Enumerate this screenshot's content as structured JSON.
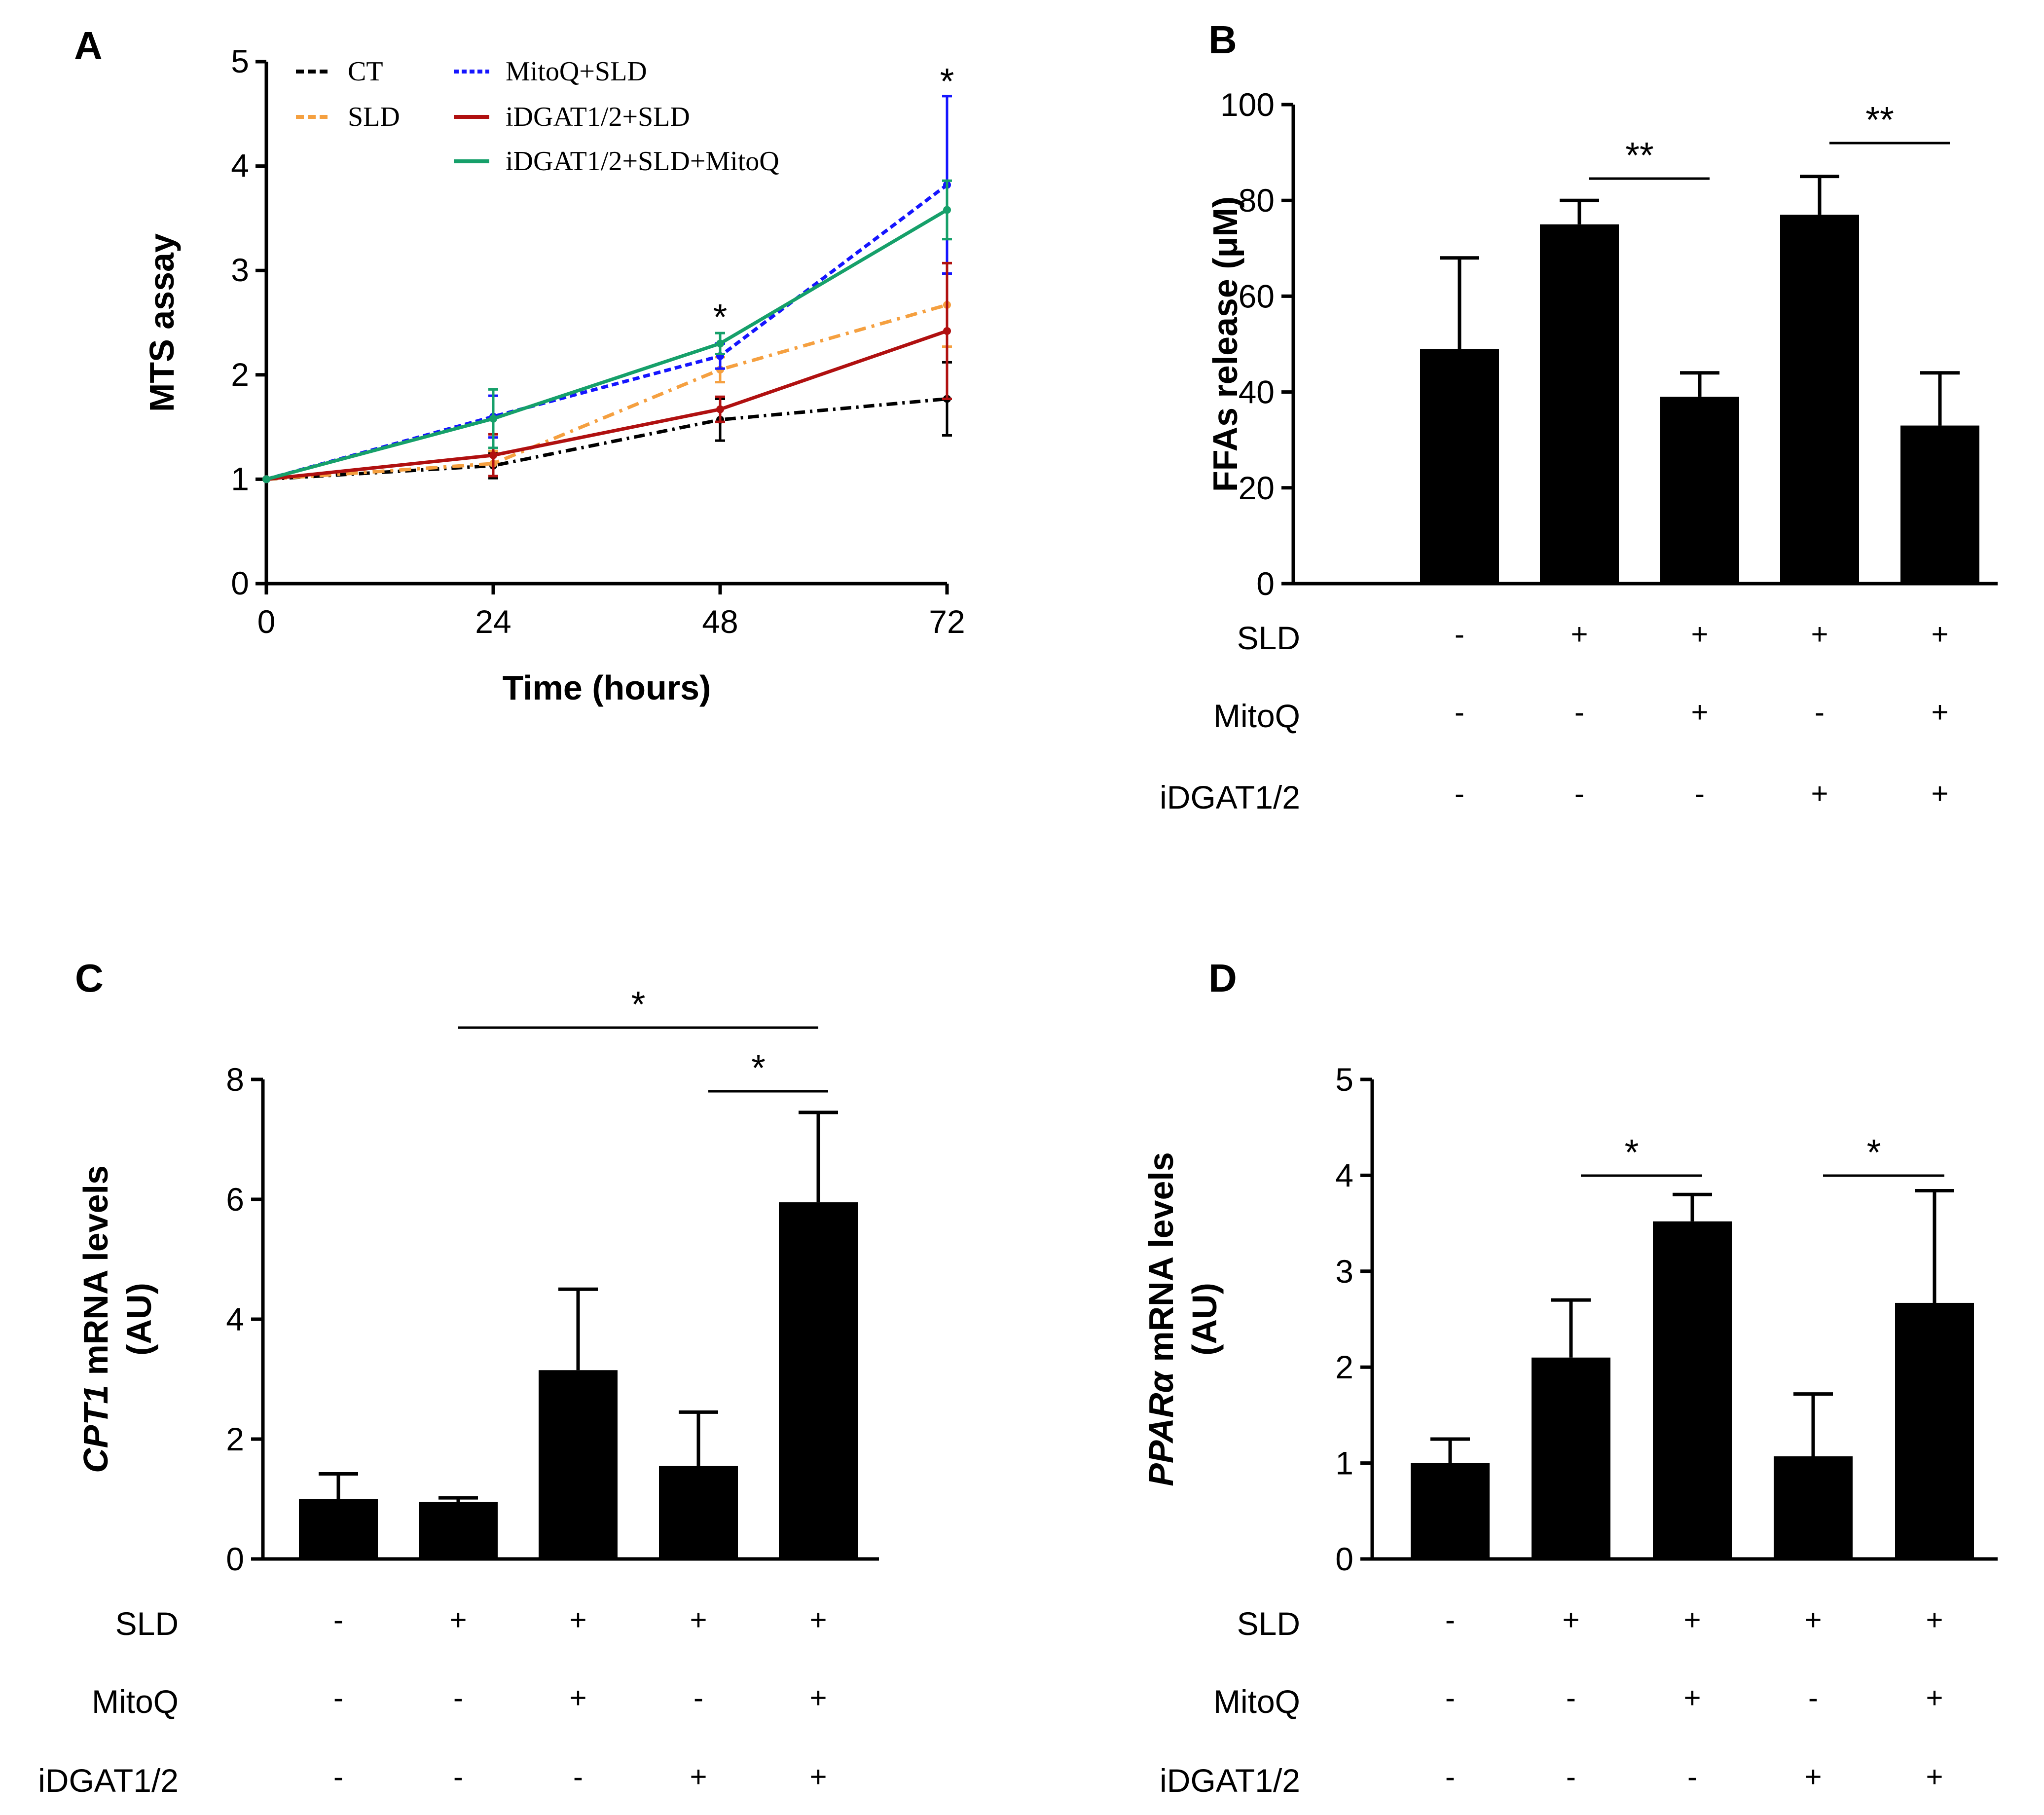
{
  "colors": {
    "CT": "#000000",
    "SLD": "#f5a040",
    "MitoQ+SLD": "#1515ff",
    "iDGAT1/2+SLD": "#b01010",
    "iDGAT1/2+SLD+MitoQ": "#16a06a",
    "bar": "#000000"
  },
  "chart_data": [
    {
      "panel": "A",
      "type": "line",
      "xlabel": "Time (hours)",
      "ylabel": "MTS assay",
      "x": [
        0,
        24,
        48,
        72
      ],
      "xlim": [
        0,
        72
      ],
      "ylim": [
        0,
        5
      ],
      "xticks": [
        "0",
        "24",
        "48",
        "72"
      ],
      "yticks": [
        "0",
        "1",
        "2",
        "3",
        "4",
        "5"
      ],
      "legend_position": "top-left",
      "series": [
        {
          "name": "CT",
          "values": [
            1.0,
            1.13,
            1.57,
            1.77
          ],
          "errors": [
            0,
            0.12,
            0.2,
            0.35
          ]
        },
        {
          "name": "SLD",
          "values": [
            1.0,
            1.15,
            2.05,
            2.67
          ],
          "errors": [
            0,
            0.12,
            0.12,
            0.4
          ]
        },
        {
          "name": "MitoQ+SLD",
          "values": [
            1.0,
            1.6,
            2.18,
            3.82
          ],
          "errors": [
            0,
            0.2,
            0.12,
            0.85
          ]
        },
        {
          "name": "iDGAT1/2+SLD",
          "values": [
            1.0,
            1.23,
            1.67,
            2.42
          ],
          "errors": [
            0,
            0.2,
            0.12,
            0.65
          ]
        },
        {
          "name": "iDGAT1/2+SLD+MitoQ",
          "values": [
            1.0,
            1.58,
            2.3,
            3.58
          ],
          "errors": [
            0,
            0.28,
            0.1,
            0.28
          ]
        }
      ],
      "significance": [
        {
          "x": 48,
          "label": "*"
        },
        {
          "x": 72,
          "label": "*"
        }
      ]
    },
    {
      "panel": "B",
      "type": "bar",
      "ylabel": "FFAs release (μM)",
      "ylim": [
        0,
        100
      ],
      "yticks": [
        "0",
        "20",
        "40",
        "60",
        "80",
        "100"
      ],
      "values": [
        49,
        75,
        39,
        77,
        33
      ],
      "errors": [
        19,
        5,
        5,
        8,
        11
      ],
      "significance": [
        {
          "from": 1,
          "to": 2,
          "label": "**"
        },
        {
          "from": 3,
          "to": 4,
          "label": "**"
        }
      ]
    },
    {
      "panel": "C",
      "type": "bar",
      "ylabel_italic": "CPT1",
      "ylabel_rest": " mRNA levels",
      "ylabel_line2": "(AU)",
      "ylim": [
        0,
        8
      ],
      "yticks": [
        "0",
        "2",
        "4",
        "6",
        "8"
      ],
      "values": [
        1.0,
        0.95,
        3.15,
        1.55,
        5.95
      ],
      "errors": [
        0.42,
        0.07,
        1.35,
        0.9,
        1.5
      ],
      "significance": [
        {
          "from": 1,
          "to": 4,
          "label": "*"
        },
        {
          "from": 3,
          "to": 4,
          "label": "*"
        }
      ]
    },
    {
      "panel": "D",
      "type": "bar",
      "ylabel_italic": "PPARα",
      "ylabel_rest": " mRNA levels",
      "ylabel_line2": "(AU)",
      "ylim": [
        0,
        5
      ],
      "yticks": [
        "0",
        "1",
        "2",
        "3",
        "4",
        "5"
      ],
      "values": [
        1.0,
        2.1,
        3.52,
        1.07,
        2.67
      ],
      "errors": [
        0.25,
        0.6,
        0.28,
        0.65,
        1.17
      ],
      "significance": [
        {
          "from": 1,
          "to": 2,
          "label": "*"
        },
        {
          "from": 3,
          "to": 4,
          "label": "*"
        }
      ]
    }
  ],
  "conditions": {
    "rows": [
      {
        "label": "SLD",
        "signs": [
          "-",
          "+",
          "+",
          "+",
          "+"
        ]
      },
      {
        "label": "MitoQ",
        "signs": [
          "-",
          "-",
          "+",
          "-",
          "+"
        ]
      },
      {
        "label": "iDGAT1/2",
        "signs": [
          "-",
          "-",
          "-",
          "+",
          "+"
        ]
      }
    ]
  }
}
